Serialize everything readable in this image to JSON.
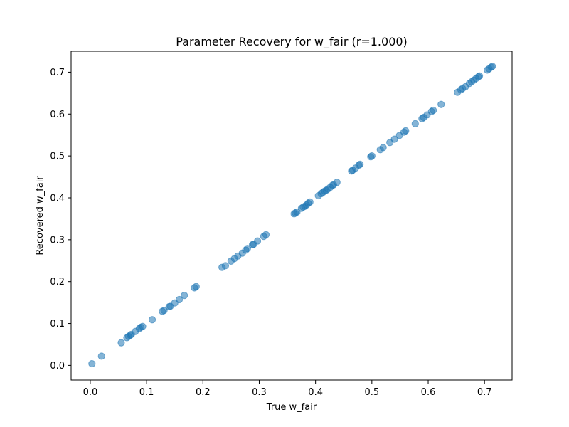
{
  "chart_data": {
    "type": "scatter",
    "title": "Parameter Recovery for w_fair (r=1.000)",
    "xlabel": "True w_fair",
    "ylabel": "Recovered w_fair",
    "xlim": [
      -0.034,
      0.749
    ],
    "ylim": [
      -0.035,
      0.75
    ],
    "xticks": [
      0.0,
      0.1,
      0.2,
      0.3,
      0.4,
      0.5,
      0.6,
      0.7
    ],
    "xtick_labels": [
      "0.0",
      "0.1",
      "0.2",
      "0.3",
      "0.4",
      "0.5",
      "0.6",
      "0.7"
    ],
    "yticks": [
      0.0,
      0.1,
      0.2,
      0.3,
      0.4,
      0.5,
      0.6,
      0.7
    ],
    "ytick_labels": [
      "0.0",
      "0.1",
      "0.2",
      "0.3",
      "0.4",
      "0.5",
      "0.6",
      "0.7"
    ],
    "grid": false,
    "legend": "none",
    "marker_color": "#1f77b4",
    "marker_alpha": 0.55,
    "series": [
      {
        "points": [
          [
            0.003,
            0.004
          ],
          [
            0.02,
            0.022
          ],
          [
            0.055,
            0.054
          ],
          [
            0.065,
            0.066
          ],
          [
            0.068,
            0.069
          ],
          [
            0.071,
            0.072
          ],
          [
            0.073,
            0.074
          ],
          [
            0.08,
            0.081
          ],
          [
            0.087,
            0.088
          ],
          [
            0.09,
            0.091
          ],
          [
            0.093,
            0.093
          ],
          [
            0.11,
            0.109
          ],
          [
            0.128,
            0.129
          ],
          [
            0.131,
            0.131
          ],
          [
            0.14,
            0.14
          ],
          [
            0.142,
            0.141
          ],
          [
            0.15,
            0.149
          ],
          [
            0.158,
            0.157
          ],
          [
            0.167,
            0.167
          ],
          [
            0.185,
            0.185
          ],
          [
            0.188,
            0.188
          ],
          [
            0.234,
            0.234
          ],
          [
            0.24,
            0.238
          ],
          [
            0.25,
            0.249
          ],
          [
            0.256,
            0.255
          ],
          [
            0.262,
            0.261
          ],
          [
            0.27,
            0.268
          ],
          [
            0.276,
            0.275
          ],
          [
            0.279,
            0.279
          ],
          [
            0.288,
            0.288
          ],
          [
            0.29,
            0.289
          ],
          [
            0.297,
            0.297
          ],
          [
            0.308,
            0.308
          ],
          [
            0.312,
            0.312
          ],
          [
            0.362,
            0.362
          ],
          [
            0.364,
            0.364
          ],
          [
            0.367,
            0.366
          ],
          [
            0.375,
            0.375
          ],
          [
            0.378,
            0.378
          ],
          [
            0.381,
            0.38
          ],
          [
            0.384,
            0.383
          ],
          [
            0.387,
            0.387
          ],
          [
            0.39,
            0.39
          ],
          [
            0.405,
            0.405
          ],
          [
            0.41,
            0.41
          ],
          [
            0.413,
            0.413
          ],
          [
            0.416,
            0.416
          ],
          [
            0.419,
            0.418
          ],
          [
            0.422,
            0.421
          ],
          [
            0.426,
            0.425
          ],
          [
            0.43,
            0.43
          ],
          [
            0.432,
            0.431
          ],
          [
            0.438,
            0.437
          ],
          [
            0.464,
            0.464
          ],
          [
            0.466,
            0.466
          ],
          [
            0.471,
            0.471
          ],
          [
            0.477,
            0.478
          ],
          [
            0.479,
            0.48
          ],
          [
            0.498,
            0.498
          ],
          [
            0.5,
            0.5
          ],
          [
            0.515,
            0.515
          ],
          [
            0.52,
            0.52
          ],
          [
            0.532,
            0.532
          ],
          [
            0.54,
            0.54
          ],
          [
            0.549,
            0.549
          ],
          [
            0.557,
            0.557
          ],
          [
            0.56,
            0.56
          ],
          [
            0.577,
            0.577
          ],
          [
            0.589,
            0.589
          ],
          [
            0.592,
            0.592
          ],
          [
            0.598,
            0.598
          ],
          [
            0.606,
            0.606
          ],
          [
            0.609,
            0.609
          ],
          [
            0.623,
            0.623
          ],
          [
            0.652,
            0.652
          ],
          [
            0.658,
            0.658
          ],
          [
            0.661,
            0.661
          ],
          [
            0.666,
            0.665
          ],
          [
            0.673,
            0.673
          ],
          [
            0.677,
            0.677
          ],
          [
            0.681,
            0.681
          ],
          [
            0.685,
            0.685
          ],
          [
            0.689,
            0.689
          ],
          [
            0.691,
            0.691
          ],
          [
            0.705,
            0.705
          ],
          [
            0.708,
            0.708
          ],
          [
            0.712,
            0.712
          ],
          [
            0.714,
            0.714
          ]
        ]
      }
    ]
  }
}
